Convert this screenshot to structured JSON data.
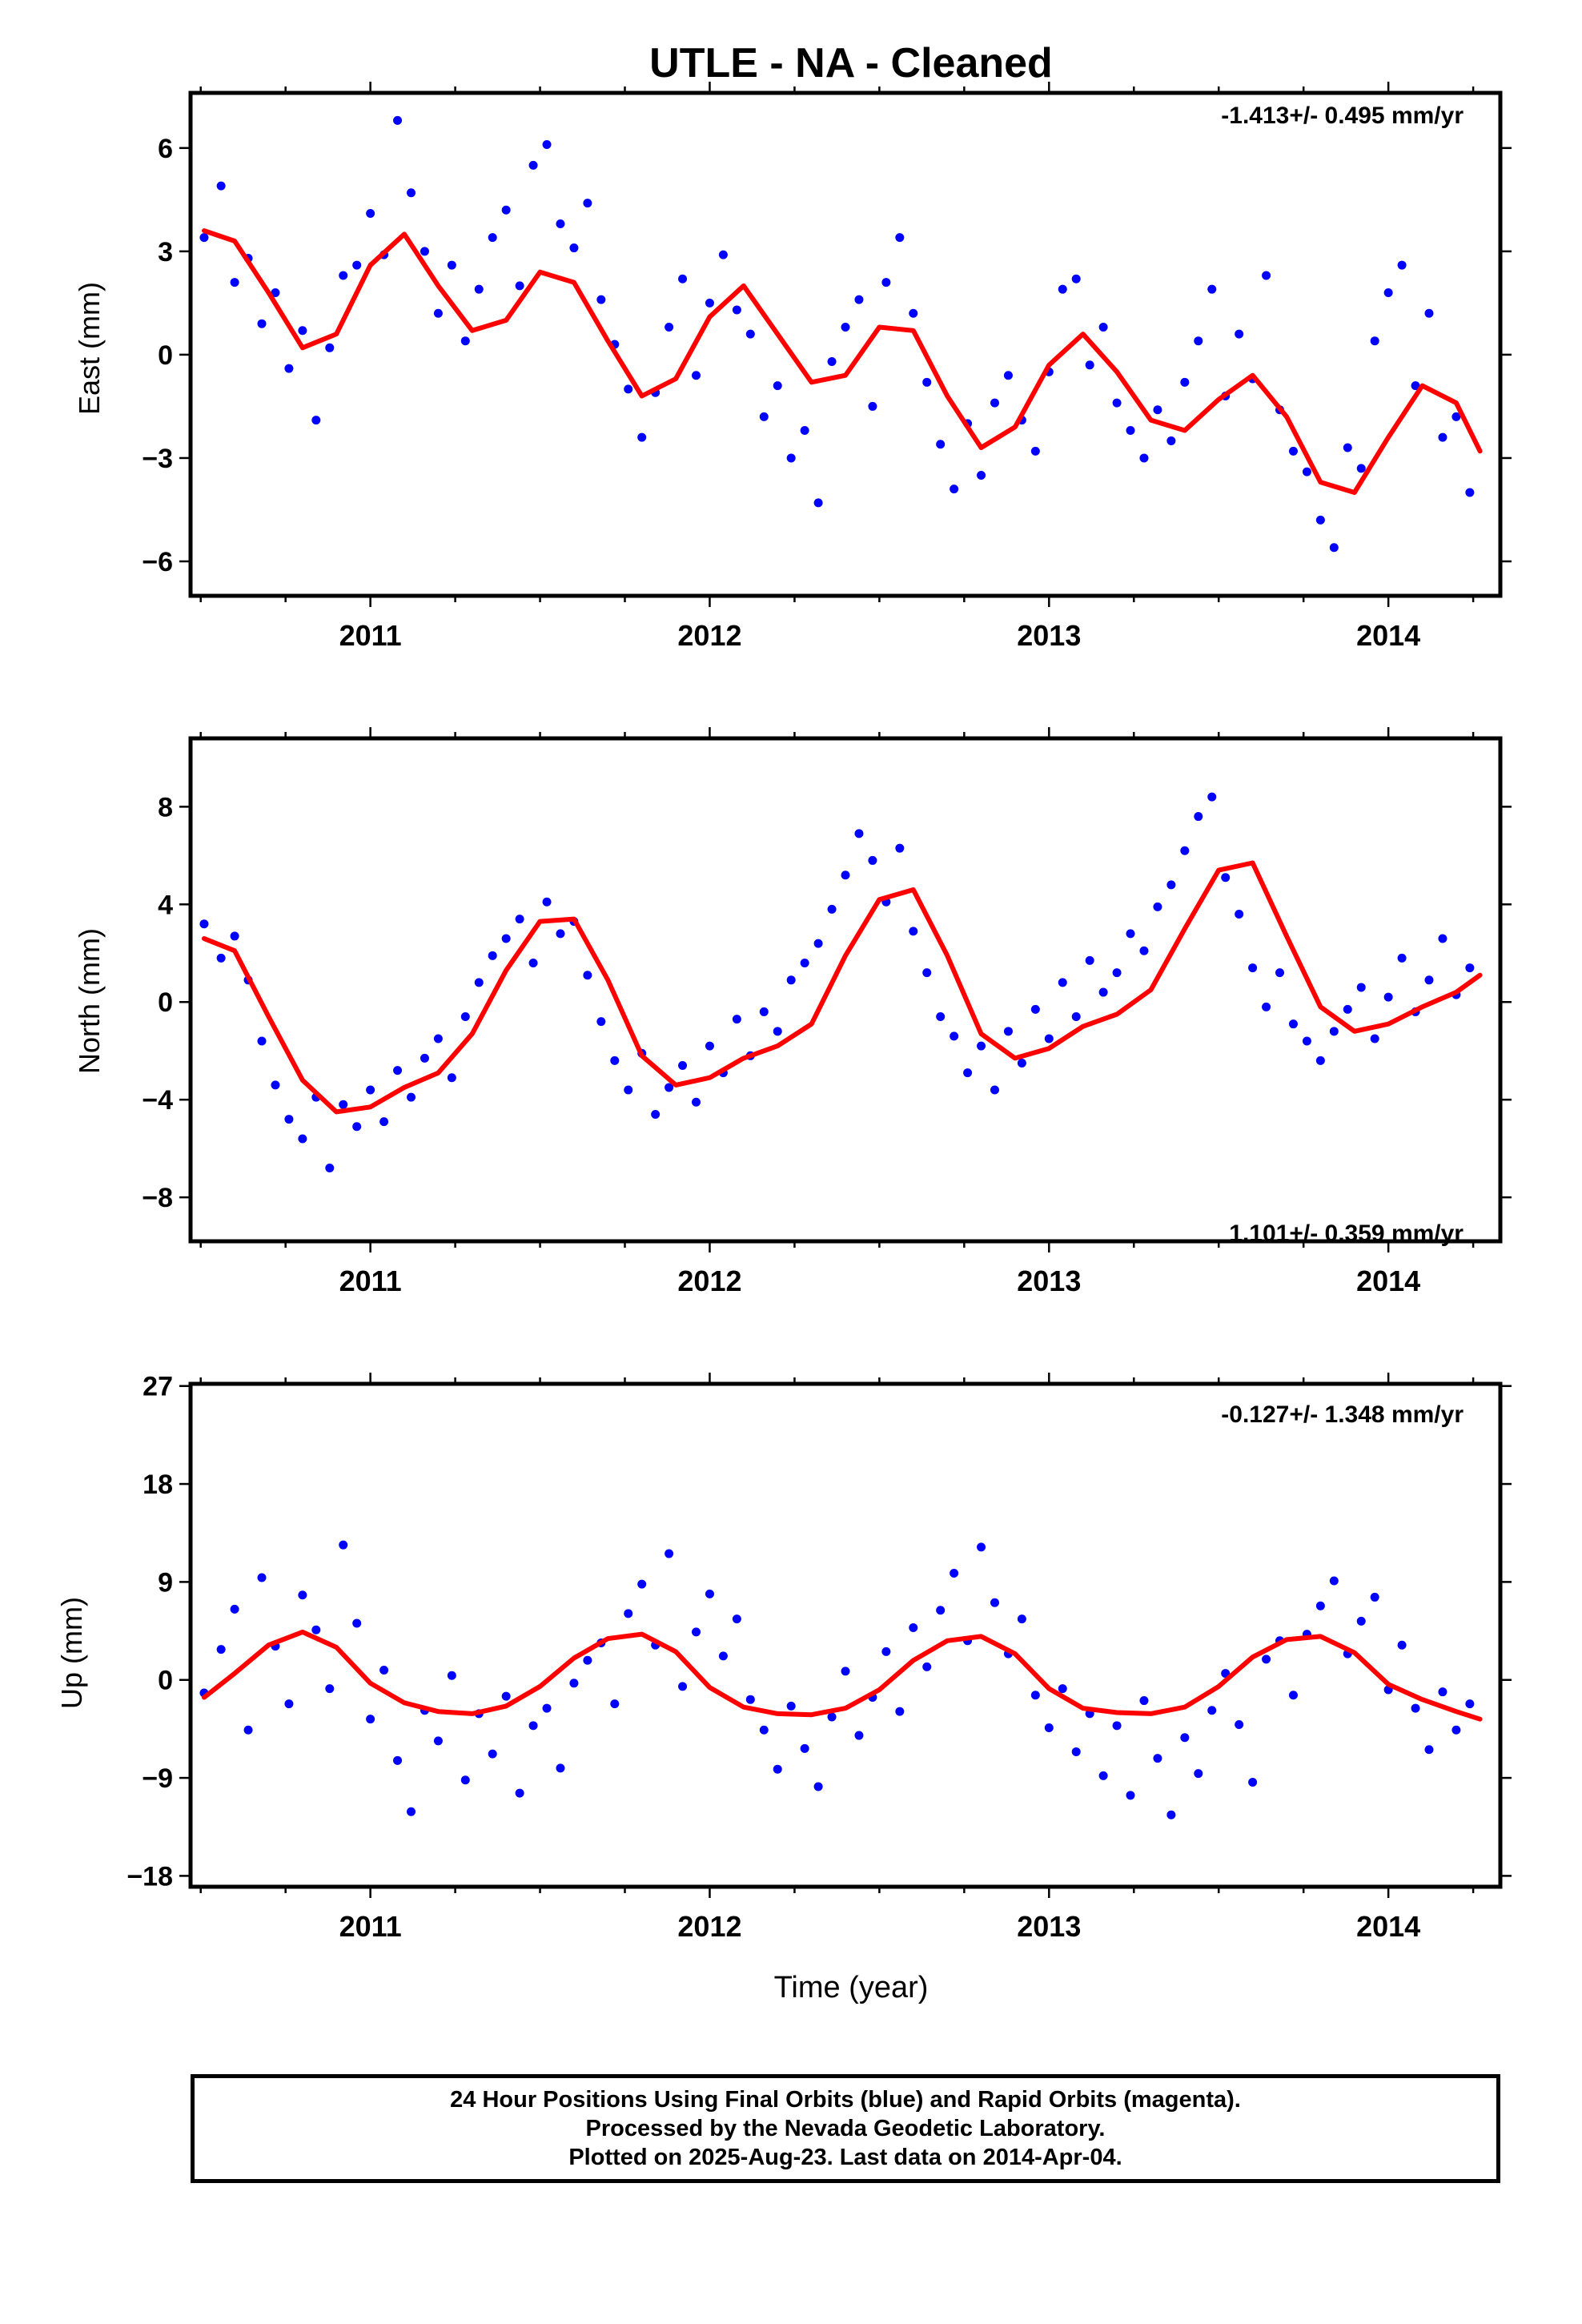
{
  "title": "UTLE  - NA - Cleaned",
  "colors": {
    "final_orbits": "#0000ff",
    "model_fit": "#ff0000",
    "axes": "#000000"
  },
  "chart_data": [
    {
      "type": "scatter",
      "ylabel": "East (mm)",
      "rate_label": "-1.413+/- 0.495 mm/yr",
      "rate_position": "top-right",
      "xlim": [
        2010.47,
        2014.33
      ],
      "ylim": [
        -7,
        7.6
      ],
      "x_ticks": [
        2011,
        2012,
        2013,
        2014
      ],
      "y_ticks": [
        -6,
        -3,
        0,
        3,
        6
      ],
      "grid": false,
      "series": [
        {
          "kind": "scatter",
          "x": [
            2010.51,
            2010.56,
            2010.6,
            2010.64,
            2010.68,
            2010.72,
            2010.76,
            2010.8,
            2010.84,
            2010.88,
            2010.92,
            2010.96,
            2011.0,
            2011.04,
            2011.08,
            2011.12,
            2011.16,
            2011.2,
            2011.24,
            2011.28,
            2011.32,
            2011.36,
            2011.4,
            2011.44,
            2011.48,
            2011.52,
            2011.56,
            2011.6,
            2011.64,
            2011.68,
            2011.72,
            2011.76,
            2011.8,
            2011.84,
            2011.88,
            2011.92,
            2011.96,
            2012.0,
            2012.04,
            2012.08,
            2012.12,
            2012.16,
            2012.2,
            2012.24,
            2012.28,
            2012.32,
            2012.36,
            2012.4,
            2012.44,
            2012.48,
            2012.52,
            2012.56,
            2012.6,
            2012.64,
            2012.68,
            2012.72,
            2012.76,
            2012.8,
            2012.84,
            2012.88,
            2012.92,
            2012.96,
            2013.0,
            2013.04,
            2013.08,
            2013.12,
            2013.16,
            2013.2,
            2013.24,
            2013.28,
            2013.32,
            2013.36,
            2013.4,
            2013.44,
            2013.48,
            2013.52,
            2013.56,
            2013.6,
            2013.64,
            2013.68,
            2013.72,
            2013.76,
            2013.8,
            2013.84,
            2013.88,
            2013.92,
            2013.96,
            2014.0,
            2014.04,
            2014.08,
            2014.12,
            2014.16,
            2014.2,
            2014.24
          ],
          "y": [
            3.4,
            4.9,
            2.1,
            2.8,
            0.9,
            1.8,
            -0.4,
            0.7,
            -1.9,
            0.2,
            2.3,
            2.6,
            4.1,
            2.9,
            6.8,
            4.7,
            3.0,
            1.2,
            2.6,
            0.4,
            1.9,
            3.4,
            4.2,
            2.0,
            5.5,
            6.1,
            3.8,
            3.1,
            4.4,
            1.6,
            0.3,
            -1.0,
            -2.4,
            -1.1,
            0.8,
            2.2,
            -0.6,
            1.5,
            2.9,
            1.3,
            0.6,
            -1.8,
            -0.9,
            -3.0,
            -2.2,
            -4.3,
            -0.2,
            0.8,
            1.6,
            -1.5,
            2.1,
            3.4,
            1.2,
            -0.8,
            -2.6,
            -3.9,
            -2.0,
            -3.5,
            -1.4,
            -0.6,
            -1.9,
            -2.8,
            -0.5,
            1.9,
            2.2,
            -0.3,
            0.8,
            -1.4,
            -2.2,
            -3.0,
            -1.6,
            -2.5,
            -0.8,
            0.4,
            1.9,
            -1.2,
            0.6,
            -0.7,
            2.3,
            -1.6,
            -2.8,
            -3.4,
            -4.8,
            -5.6,
            -2.7,
            -3.3,
            0.4,
            1.8,
            2.6,
            -0.9,
            1.2,
            -2.4,
            -1.8,
            -4.0
          ]
        },
        {
          "kind": "line",
          "x": [
            2010.51,
            2010.6,
            2010.7,
            2010.8,
            2010.9,
            2011.0,
            2011.1,
            2011.2,
            2011.3,
            2011.4,
            2011.5,
            2011.6,
            2011.7,
            2011.8,
            2011.9,
            2012.0,
            2012.1,
            2012.2,
            2012.3,
            2012.4,
            2012.5,
            2012.6,
            2012.7,
            2012.8,
            2012.9,
            2013.0,
            2013.1,
            2013.2,
            2013.3,
            2013.4,
            2013.5,
            2013.6,
            2013.7,
            2013.8,
            2013.9,
            2014.0,
            2014.1,
            2014.2,
            2014.27
          ],
          "y": [
            3.6,
            3.3,
            1.8,
            0.2,
            0.6,
            2.6,
            3.5,
            2.0,
            0.7,
            1.0,
            2.4,
            2.1,
            0.4,
            -1.2,
            -0.7,
            1.1,
            2.0,
            0.6,
            -0.8,
            -0.6,
            0.8,
            0.7,
            -1.2,
            -2.7,
            -2.1,
            -0.3,
            0.6,
            -0.5,
            -1.9,
            -2.2,
            -1.3,
            -0.6,
            -1.8,
            -3.7,
            -4.0,
            -2.4,
            -0.9,
            -1.4,
            -2.8
          ]
        }
      ]
    },
    {
      "type": "scatter",
      "ylabel": "North (mm)",
      "rate_label": "1.101+/- 0.359 mm/yr",
      "rate_position": "bottom-right",
      "xlim": [
        2010.47,
        2014.33
      ],
      "ylim": [
        -9.8,
        10.8
      ],
      "x_ticks": [
        2011,
        2012,
        2013,
        2014
      ],
      "y_ticks": [
        -8,
        -4,
        0,
        4,
        8
      ],
      "grid": false,
      "series": [
        {
          "kind": "scatter",
          "x": [
            2010.51,
            2010.56,
            2010.6,
            2010.64,
            2010.68,
            2010.72,
            2010.76,
            2010.8,
            2010.84,
            2010.88,
            2010.92,
            2010.96,
            2011.0,
            2011.04,
            2011.08,
            2011.12,
            2011.16,
            2011.2,
            2011.24,
            2011.28,
            2011.32,
            2011.36,
            2011.4,
            2011.44,
            2011.48,
            2011.52,
            2011.56,
            2011.6,
            2011.64,
            2011.68,
            2011.72,
            2011.76,
            2011.8,
            2011.84,
            2011.88,
            2011.92,
            2011.96,
            2012.0,
            2012.04,
            2012.08,
            2012.12,
            2012.16,
            2012.2,
            2012.24,
            2012.28,
            2012.32,
            2012.36,
            2012.4,
            2012.44,
            2012.48,
            2012.52,
            2012.56,
            2012.6,
            2012.64,
            2012.68,
            2012.72,
            2012.76,
            2012.8,
            2012.84,
            2012.88,
            2012.92,
            2012.96,
            2013.0,
            2013.04,
            2013.08,
            2013.12,
            2013.16,
            2013.2,
            2013.24,
            2013.28,
            2013.32,
            2013.36,
            2013.4,
            2013.44,
            2013.48,
            2013.52,
            2013.56,
            2013.6,
            2013.64,
            2013.68,
            2013.72,
            2013.76,
            2013.8,
            2013.84,
            2013.88,
            2013.92,
            2013.96,
            2014.0,
            2014.04,
            2014.08,
            2014.12,
            2014.16,
            2014.2,
            2014.24
          ],
          "y": [
            3.2,
            1.8,
            2.7,
            0.9,
            -1.6,
            -3.4,
            -4.8,
            -5.6,
            -3.9,
            -6.8,
            -4.2,
            -5.1,
            -3.6,
            -4.9,
            -2.8,
            -3.9,
            -2.3,
            -1.5,
            -3.1,
            -0.6,
            0.8,
            1.9,
            2.6,
            3.4,
            1.6,
            4.1,
            2.8,
            3.3,
            1.1,
            -0.8,
            -2.4,
            -3.6,
            -2.1,
            -4.6,
            -3.5,
            -2.6,
            -4.1,
            -1.8,
            -2.9,
            -0.7,
            -2.2,
            -0.4,
            -1.2,
            0.9,
            1.6,
            2.4,
            3.8,
            5.2,
            6.9,
            5.8,
            4.1,
            6.3,
            2.9,
            1.2,
            -0.6,
            -1.4,
            -2.9,
            -1.8,
            -3.6,
            -1.2,
            -2.5,
            -0.3,
            -1.5,
            0.8,
            -0.6,
            1.7,
            0.4,
            1.2,
            2.8,
            2.1,
            3.9,
            4.8,
            6.2,
            7.6,
            8.4,
            5.1,
            3.6,
            1.4,
            -0.2,
            1.2,
            -0.9,
            -1.6,
            -2.4,
            -1.2,
            -0.3,
            0.6,
            -1.5,
            0.2,
            1.8,
            -0.4,
            0.9,
            2.6,
            0.3,
            1.4
          ]
        },
        {
          "kind": "line",
          "x": [
            2010.51,
            2010.6,
            2010.7,
            2010.8,
            2010.9,
            2011.0,
            2011.1,
            2011.2,
            2011.3,
            2011.4,
            2011.5,
            2011.6,
            2011.7,
            2011.8,
            2011.9,
            2012.0,
            2012.1,
            2012.2,
            2012.3,
            2012.4,
            2012.5,
            2012.6,
            2012.7,
            2012.8,
            2012.9,
            2013.0,
            2013.1,
            2013.2,
            2013.3,
            2013.4,
            2013.5,
            2013.6,
            2013.7,
            2013.8,
            2013.9,
            2014.0,
            2014.1,
            2014.2,
            2014.27
          ],
          "y": [
            2.6,
            2.1,
            -0.6,
            -3.2,
            -4.5,
            -4.3,
            -3.5,
            -2.9,
            -1.3,
            1.3,
            3.3,
            3.4,
            0.9,
            -2.2,
            -3.4,
            -3.1,
            -2.3,
            -1.8,
            -0.9,
            1.9,
            4.2,
            4.6,
            1.9,
            -1.3,
            -2.3,
            -1.9,
            -1.0,
            -0.5,
            0.5,
            3.0,
            5.4,
            5.7,
            2.7,
            -0.2,
            -1.2,
            -0.9,
            -0.2,
            0.4,
            1.1
          ]
        }
      ]
    },
    {
      "type": "scatter",
      "ylabel": "Up (mm)",
      "rate_label": "-0.127+/- 1.348 mm/yr",
      "rate_position": "top-right",
      "xaxis_label": "Time (year)",
      "xlim": [
        2010.47,
        2014.33
      ],
      "ylim": [
        -19,
        27.2
      ],
      "x_ticks": [
        2011,
        2012,
        2013,
        2014
      ],
      "y_ticks": [
        -18,
        -9,
        0,
        9,
        18,
        27
      ],
      "grid": false,
      "series": [
        {
          "kind": "scatter",
          "x": [
            2010.51,
            2010.56,
            2010.6,
            2010.64,
            2010.68,
            2010.72,
            2010.76,
            2010.8,
            2010.84,
            2010.88,
            2010.92,
            2010.96,
            2011.0,
            2011.04,
            2011.08,
            2011.12,
            2011.16,
            2011.2,
            2011.24,
            2011.28,
            2011.32,
            2011.36,
            2011.4,
            2011.44,
            2011.48,
            2011.52,
            2011.56,
            2011.6,
            2011.64,
            2011.68,
            2011.72,
            2011.76,
            2011.8,
            2011.84,
            2011.88,
            2011.92,
            2011.96,
            2012.0,
            2012.04,
            2012.08,
            2012.12,
            2012.16,
            2012.2,
            2012.24,
            2012.28,
            2012.32,
            2012.36,
            2012.4,
            2012.44,
            2012.48,
            2012.52,
            2012.56,
            2012.6,
            2012.64,
            2012.68,
            2012.72,
            2012.76,
            2012.8,
            2012.84,
            2012.88,
            2012.92,
            2012.96,
            2013.0,
            2013.04,
            2013.08,
            2013.12,
            2013.16,
            2013.2,
            2013.24,
            2013.28,
            2013.32,
            2013.36,
            2013.4,
            2013.44,
            2013.48,
            2013.52,
            2013.56,
            2013.6,
            2013.64,
            2013.68,
            2013.72,
            2013.76,
            2013.8,
            2013.84,
            2013.88,
            2013.92,
            2013.96,
            2014.0,
            2014.04,
            2014.08,
            2014.12,
            2014.16,
            2014.2,
            2014.24
          ],
          "y": [
            -1.2,
            2.8,
            6.5,
            -4.6,
            9.4,
            3.1,
            -2.2,
            7.8,
            4.6,
            -0.8,
            12.4,
            5.2,
            -3.6,
            0.9,
            -7.4,
            -12.1,
            -2.8,
            -5.6,
            0.4,
            -9.2,
            -3.1,
            -6.8,
            -1.5,
            -10.4,
            -4.2,
            -2.6,
            -8.1,
            -0.3,
            1.8,
            3.4,
            -2.2,
            6.1,
            8.8,
            3.2,
            11.6,
            -0.6,
            4.4,
            7.9,
            2.2,
            5.6,
            -1.8,
            -4.6,
            -8.2,
            -2.4,
            -6.3,
            -9.8,
            -3.4,
            0.8,
            -5.1,
            -1.6,
            2.6,
            -2.9,
            4.8,
            1.2,
            6.4,
            9.8,
            3.6,
            12.2,
            7.1,
            2.4,
            5.6,
            -1.4,
            -4.4,
            -0.8,
            -6.6,
            -3.1,
            -8.8,
            -4.2,
            -10.6,
            -1.9,
            -7.2,
            -12.4,
            -5.3,
            -8.6,
            -2.8,
            0.6,
            -4.1,
            -9.4,
            1.9,
            3.6,
            -1.4,
            4.2,
            6.8,
            9.1,
            2.4,
            5.4,
            7.6,
            -0.9,
            3.2,
            -2.6,
            -6.4,
            -1.1,
            -4.6,
            -2.2
          ]
        },
        {
          "kind": "line",
          "x": [
            2010.51,
            2010.6,
            2010.7,
            2010.8,
            2010.9,
            2011.0,
            2011.1,
            2011.2,
            2011.3,
            2011.4,
            2011.5,
            2011.6,
            2011.7,
            2011.8,
            2011.9,
            2012.0,
            2012.1,
            2012.2,
            2012.3,
            2012.4,
            2012.5,
            2012.6,
            2012.7,
            2012.8,
            2012.9,
            2013.0,
            2013.1,
            2013.2,
            2013.3,
            2013.4,
            2013.5,
            2013.6,
            2013.7,
            2013.8,
            2013.9,
            2014.0,
            2014.1,
            2014.2,
            2014.27
          ],
          "y": [
            -1.6,
            0.6,
            3.2,
            4.4,
            3.0,
            -0.3,
            -2.1,
            -2.9,
            -3.1,
            -2.4,
            -0.6,
            2.0,
            3.8,
            4.2,
            2.6,
            -0.7,
            -2.5,
            -3.1,
            -3.2,
            -2.6,
            -0.9,
            1.8,
            3.6,
            4.0,
            2.4,
            -0.8,
            -2.6,
            -3.0,
            -3.1,
            -2.5,
            -0.6,
            2.1,
            3.7,
            4.0,
            2.5,
            -0.4,
            -1.8,
            -2.9,
            -3.6
          ]
        }
      ]
    }
  ],
  "caption": {
    "line1": "24 Hour Positions Using Final Orbits (blue) and Rapid Orbits (magenta).",
    "line2": "Processed by the Nevada Geodetic Laboratory.",
    "line3": "Plotted on 2025-Aug-23. Last data on 2014-Apr-04."
  }
}
